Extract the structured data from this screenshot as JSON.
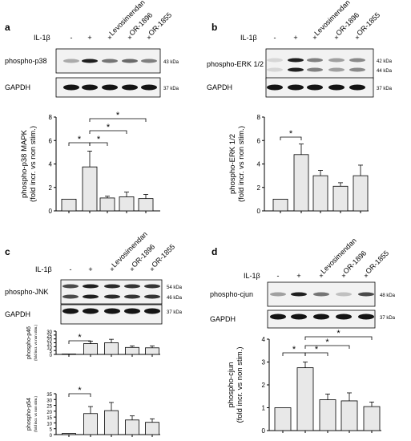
{
  "panels": [
    {
      "letter": "a",
      "treatment_label": "IL-1β",
      "treatments": [
        "-",
        "+",
        "+",
        "+",
        "+"
      ],
      "drugs": [
        "Levosimendan",
        "OR-1896",
        "OR-1855"
      ],
      "blots": [
        {
          "label": "phospho-p38",
          "markers": [
            "43 kDa"
          ],
          "bands": [
            0.3,
            0.95,
            0.55,
            0.6,
            0.5
          ]
        },
        {
          "label": "GAPDH",
          "markers": [
            "37 kDa"
          ],
          "bands": [
            1,
            1,
            1,
            1,
            1
          ]
        }
      ]
    },
    {
      "letter": "b",
      "treatment_label": "IL-1β",
      "treatments": [
        "-",
        "+",
        "+",
        "+",
        "+"
      ],
      "drugs": [
        "Levosimendan",
        "OR-1896",
        "OR-1855"
      ],
      "blots": [
        {
          "label": "phospho-ERK 1/2",
          "markers": [
            "42 kDa",
            "44 kDa"
          ],
          "bands": [
            0.1,
            0.95,
            0.5,
            0.35,
            0.45
          ]
        },
        {
          "label": "GAPDH",
          "markers": [
            "37 kDa"
          ],
          "bands": [
            1,
            1,
            1,
            1,
            1
          ]
        }
      ]
    },
    {
      "letter": "c",
      "treatment_label": "IL-1β",
      "treatments": [
        "-",
        "+",
        "+",
        "+",
        "+"
      ],
      "drugs": [
        "Levosimendan",
        "OR-1896",
        "OR-1855"
      ],
      "blots": [
        {
          "label": "phospho-JNK",
          "markers": [
            "54 kDa",
            "46 kDa"
          ],
          "bands": [
            0.75,
            0.95,
            0.9,
            0.85,
            0.85
          ]
        },
        {
          "label": "GAPDH",
          "markers": [
            "37 kDa"
          ],
          "bands": [
            1,
            1,
            1,
            1,
            1
          ]
        }
      ]
    },
    {
      "letter": "d",
      "treatment_label": "IL-1β",
      "treatments": [
        "-",
        "+",
        "+",
        "+",
        "+"
      ],
      "drugs": [
        "Levosimendan",
        "OR-1896",
        "OR-1855"
      ],
      "blots": [
        {
          "label": "phospho-cjun",
          "markers": [
            "48 kDa"
          ],
          "bands": [
            0.35,
            0.95,
            0.55,
            0.2,
            0.75
          ]
        },
        {
          "label": "GAPDH",
          "markers": [
            "37 kDa"
          ],
          "bands": [
            1,
            1,
            1,
            1,
            1
          ]
        }
      ]
    }
  ],
  "chart_data": [
    {
      "type": "bar",
      "panel": "a",
      "ylabel": "phospho-p38 MAPK",
      "ylabel2": "(fold incr. vs non stim.)",
      "categories": [
        "",
        "",
        "",
        "",
        ""
      ],
      "values": [
        1,
        3.75,
        1.1,
        1.2,
        1.05
      ],
      "errors": [
        0,
        1.35,
        0.15,
        0.4,
        0.35
      ],
      "ylim": [
        0,
        8
      ],
      "yticks": [
        "0",
        "2",
        "4",
        "6",
        "8"
      ],
      "significance": [
        "*",
        "*",
        "*",
        "*"
      ],
      "bar_color": "#e8e8e8",
      "grid": false
    },
    {
      "type": "bar",
      "panel": "b",
      "ylabel": "phospho-ERK 1/2",
      "ylabel2": "(fold incr. vs non stim.)",
      "categories": [
        "",
        "",
        "",
        "",
        ""
      ],
      "values": [
        1,
        4.8,
        3.0,
        2.1,
        3.0
      ],
      "errors": [
        0,
        0.9,
        0.45,
        0.3,
        0.9
      ],
      "ylim": [
        0,
        8
      ],
      "yticks": [
        "0",
        "2",
        "4",
        "6",
        "8"
      ],
      "significance": [
        "*"
      ],
      "bar_color": "#e8e8e8",
      "grid": false
    },
    {
      "type": "bar",
      "panel": "c-top",
      "ylabel": "phospho-p46",
      "ylabel2": "(fold incr. vs non stim.)",
      "categories": [
        "",
        "",
        "",
        "",
        ""
      ],
      "values": [
        0.5,
        14,
        15,
        9,
        8.5
      ],
      "errors": [
        0,
        3,
        4.5,
        2,
        2.5
      ],
      "ylim": [
        0,
        30
      ],
      "yticks": [
        "0",
        "5",
        "10",
        "15",
        "20",
        "25",
        "30"
      ],
      "significance": [
        "*"
      ],
      "bar_color": "#e8e8e8",
      "grid": false
    },
    {
      "type": "bar",
      "panel": "c-bottom",
      "ylabel": "phospho-p54",
      "ylabel2": "(fold incr. vs non stim.)",
      "categories": [
        "",
        "",
        "",
        "",
        ""
      ],
      "values": [
        1,
        18,
        20.5,
        12.5,
        10.5
      ],
      "errors": [
        0,
        6,
        7,
        3.5,
        3
      ],
      "ylim": [
        0,
        35
      ],
      "yticks": [
        "0",
        "5",
        "10",
        "15",
        "20",
        "25",
        "30",
        "35"
      ],
      "significance": [
        "*"
      ],
      "bar_color": "#e8e8e8",
      "grid": false
    },
    {
      "type": "bar",
      "panel": "d",
      "ylabel": "phospho-cjun",
      "ylabel2": "(fold incr. vs non stim.)",
      "categories": [
        "",
        "",
        "",
        "",
        ""
      ],
      "values": [
        1,
        2.75,
        1.35,
        1.3,
        1.05
      ],
      "errors": [
        0,
        0.25,
        0.25,
        0.35,
        0.2
      ],
      "ylim": [
        0,
        4
      ],
      "yticks": [
        "0",
        "1",
        "2",
        "3",
        "4"
      ],
      "significance": [
        "*",
        "*",
        "*",
        "*"
      ],
      "bar_color": "#e8e8e8",
      "grid": false
    }
  ]
}
